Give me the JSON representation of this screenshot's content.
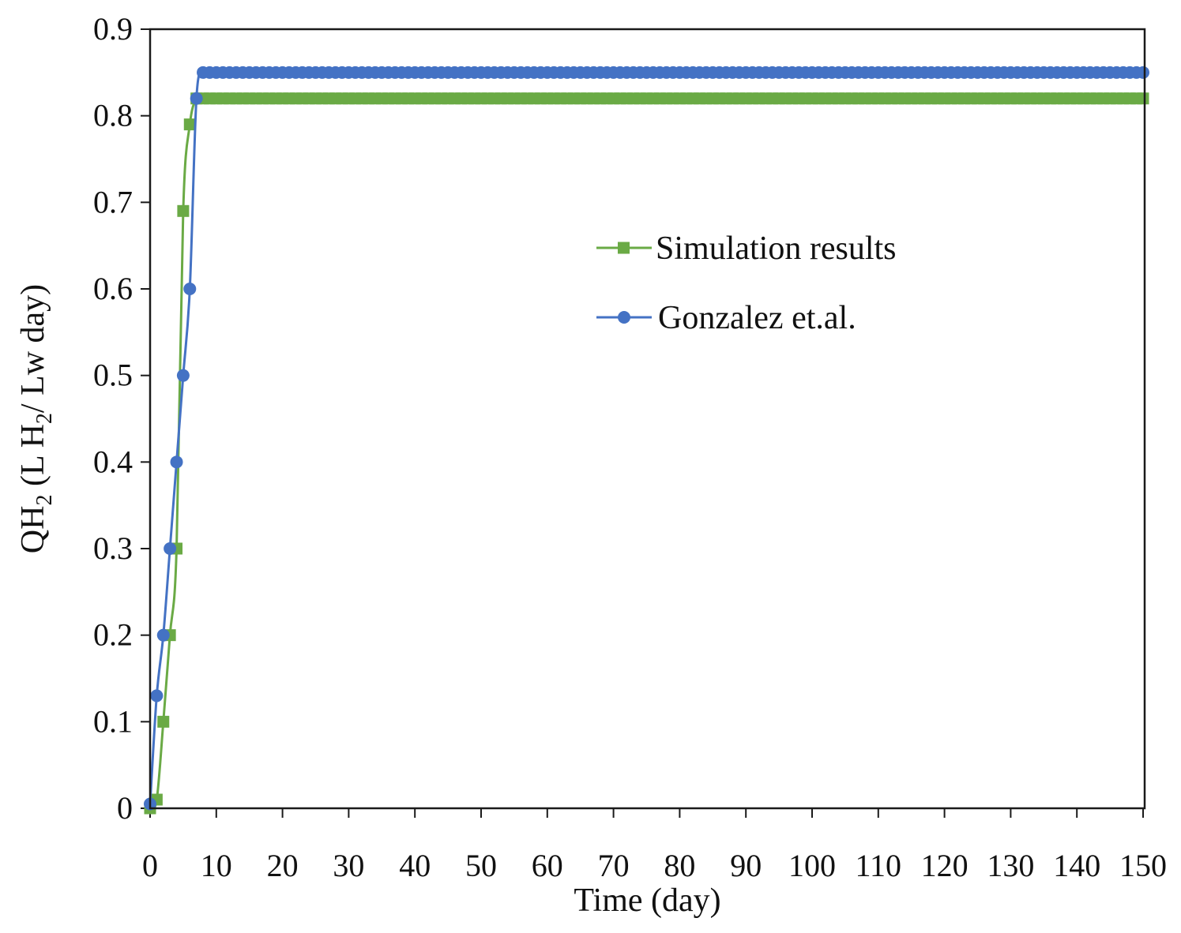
{
  "chart_data": {
    "type": "line",
    "title": "",
    "xlabel": "Time (day)",
    "ylabel": {
      "prefix": "QH",
      "prefix_sub": "2",
      "mid": " (L H",
      "mid_sub": "2",
      "suffix": "/ Lw day)"
    },
    "xlim": [
      0,
      150
    ],
    "ylim": [
      0,
      0.9
    ],
    "x_ticks": [
      0,
      10,
      20,
      30,
      40,
      50,
      60,
      70,
      80,
      90,
      100,
      110,
      120,
      130,
      140,
      150
    ],
    "x_tick_labels": [
      "0",
      "10",
      "20",
      "30",
      "40",
      "50",
      "60",
      "70",
      "80",
      "90",
      "100",
      "110",
      "120",
      "130",
      "140",
      "150"
    ],
    "y_ticks": [
      0,
      0.1,
      0.2,
      0.3,
      0.4,
      0.5,
      0.6,
      0.7,
      0.8,
      0.9
    ],
    "y_tick_labels": [
      "0",
      "0.1",
      "0.2",
      "0.3",
      "0.4",
      "0.5",
      "0.6",
      "0.7",
      "0.8",
      "0.9"
    ],
    "grid": false,
    "legend_position": "upper-right",
    "series": [
      {
        "name": "Simulation results",
        "marker": "square",
        "color": "#6aaa45",
        "x": [
          0,
          1,
          2,
          3,
          4,
          5,
          6,
          7,
          8,
          9,
          10,
          11,
          12,
          13,
          14,
          15,
          16,
          17,
          18,
          19,
          20,
          21,
          22,
          23,
          24,
          25,
          26,
          27,
          28,
          29,
          30,
          31,
          32,
          33,
          34,
          35,
          36,
          37,
          38,
          39,
          40,
          41,
          42,
          43,
          44,
          45,
          46,
          47,
          48,
          49,
          50,
          51,
          52,
          53,
          54,
          55,
          56,
          57,
          58,
          59,
          60,
          61,
          62,
          63,
          64,
          65,
          66,
          67,
          68,
          69,
          70,
          71,
          72,
          73,
          74,
          75,
          76,
          77,
          78,
          79,
          80,
          81,
          82,
          83,
          84,
          85,
          86,
          87,
          88,
          89,
          90,
          91,
          92,
          93,
          94,
          95,
          96,
          97,
          98,
          99,
          100,
          101,
          102,
          103,
          104,
          105,
          106,
          107,
          108,
          109,
          110,
          111,
          112,
          113,
          114,
          115,
          116,
          117,
          118,
          119,
          120,
          121,
          122,
          123,
          124,
          125,
          126,
          127,
          128,
          129,
          130,
          131,
          132,
          133,
          134,
          135,
          136,
          137,
          138,
          139,
          140,
          141,
          142,
          143,
          144,
          145,
          146,
          147,
          148,
          149,
          150
        ],
        "y": [
          0.0,
          0.01,
          0.1,
          0.2,
          0.3,
          0.69,
          0.79,
          0.82,
          0.82,
          0.82,
          0.82,
          0.82,
          0.82,
          0.82,
          0.82,
          0.82,
          0.82,
          0.82,
          0.82,
          0.82,
          0.82,
          0.82,
          0.82,
          0.82,
          0.82,
          0.82,
          0.82,
          0.82,
          0.82,
          0.82,
          0.82,
          0.82,
          0.82,
          0.82,
          0.82,
          0.82,
          0.82,
          0.82,
          0.82,
          0.82,
          0.82,
          0.82,
          0.82,
          0.82,
          0.82,
          0.82,
          0.82,
          0.82,
          0.82,
          0.82,
          0.82,
          0.82,
          0.82,
          0.82,
          0.82,
          0.82,
          0.82,
          0.82,
          0.82,
          0.82,
          0.82,
          0.82,
          0.82,
          0.82,
          0.82,
          0.82,
          0.82,
          0.82,
          0.82,
          0.82,
          0.82,
          0.82,
          0.82,
          0.82,
          0.82,
          0.82,
          0.82,
          0.82,
          0.82,
          0.82,
          0.82,
          0.82,
          0.82,
          0.82,
          0.82,
          0.82,
          0.82,
          0.82,
          0.82,
          0.82,
          0.82,
          0.82,
          0.82,
          0.82,
          0.82,
          0.82,
          0.82,
          0.82,
          0.82,
          0.82,
          0.82,
          0.82,
          0.82,
          0.82,
          0.82,
          0.82,
          0.82,
          0.82,
          0.82,
          0.82,
          0.82,
          0.82,
          0.82,
          0.82,
          0.82,
          0.82,
          0.82,
          0.82,
          0.82,
          0.82,
          0.82,
          0.82,
          0.82,
          0.82,
          0.82,
          0.82,
          0.82,
          0.82,
          0.82,
          0.82,
          0.82,
          0.82,
          0.82,
          0.82,
          0.82,
          0.82,
          0.82,
          0.82,
          0.82,
          0.82,
          0.82,
          0.82,
          0.82,
          0.82,
          0.82,
          0.82,
          0.82,
          0.82,
          0.82,
          0.82,
          0.82
        ]
      },
      {
        "name": "Gonzalez et.al.",
        "marker": "circle",
        "color": "#4472c4",
        "x": [
          0,
          1,
          2,
          3,
          4,
          5,
          6,
          7,
          8,
          9,
          10,
          11,
          12,
          13,
          14,
          15,
          16,
          17,
          18,
          19,
          20,
          21,
          22,
          23,
          24,
          25,
          26,
          27,
          28,
          29,
          30,
          31,
          32,
          33,
          34,
          35,
          36,
          37,
          38,
          39,
          40,
          41,
          42,
          43,
          44,
          45,
          46,
          47,
          48,
          49,
          50,
          51,
          52,
          53,
          54,
          55,
          56,
          57,
          58,
          59,
          60,
          61,
          62,
          63,
          64,
          65,
          66,
          67,
          68,
          69,
          70,
          71,
          72,
          73,
          74,
          75,
          76,
          77,
          78,
          79,
          80,
          81,
          82,
          83,
          84,
          85,
          86,
          87,
          88,
          89,
          90,
          91,
          92,
          93,
          94,
          95,
          96,
          97,
          98,
          99,
          100,
          101,
          102,
          103,
          104,
          105,
          106,
          107,
          108,
          109,
          110,
          111,
          112,
          113,
          114,
          115,
          116,
          117,
          118,
          119,
          120,
          121,
          122,
          123,
          124,
          125,
          126,
          127,
          128,
          129,
          130,
          131,
          132,
          133,
          134,
          135,
          136,
          137,
          138,
          139,
          140,
          141,
          142,
          143,
          144,
          145,
          146,
          147,
          148,
          149,
          150
        ],
        "y": [
          0.005,
          0.13,
          0.2,
          0.3,
          0.4,
          0.5,
          0.6,
          0.82,
          0.85,
          0.85,
          0.85,
          0.85,
          0.85,
          0.85,
          0.85,
          0.85,
          0.85,
          0.85,
          0.85,
          0.85,
          0.85,
          0.85,
          0.85,
          0.85,
          0.85,
          0.85,
          0.85,
          0.85,
          0.85,
          0.85,
          0.85,
          0.85,
          0.85,
          0.85,
          0.85,
          0.85,
          0.85,
          0.85,
          0.85,
          0.85,
          0.85,
          0.85,
          0.85,
          0.85,
          0.85,
          0.85,
          0.85,
          0.85,
          0.85,
          0.85,
          0.85,
          0.85,
          0.85,
          0.85,
          0.85,
          0.85,
          0.85,
          0.85,
          0.85,
          0.85,
          0.85,
          0.85,
          0.85,
          0.85,
          0.85,
          0.85,
          0.85,
          0.85,
          0.85,
          0.85,
          0.85,
          0.85,
          0.85,
          0.85,
          0.85,
          0.85,
          0.85,
          0.85,
          0.85,
          0.85,
          0.85,
          0.85,
          0.85,
          0.85,
          0.85,
          0.85,
          0.85,
          0.85,
          0.85,
          0.85,
          0.85,
          0.85,
          0.85,
          0.85,
          0.85,
          0.85,
          0.85,
          0.85,
          0.85,
          0.85,
          0.85,
          0.85,
          0.85,
          0.85,
          0.85,
          0.85,
          0.85,
          0.85,
          0.85,
          0.85,
          0.85,
          0.85,
          0.85,
          0.85,
          0.85,
          0.85,
          0.85,
          0.85,
          0.85,
          0.85,
          0.85,
          0.85,
          0.85,
          0.85,
          0.85,
          0.85,
          0.85,
          0.85,
          0.85,
          0.85,
          0.85,
          0.85,
          0.85,
          0.85,
          0.85,
          0.85,
          0.85,
          0.85,
          0.85,
          0.85,
          0.85,
          0.85,
          0.85,
          0.85,
          0.85,
          0.85,
          0.85,
          0.85,
          0.85,
          0.85,
          0.85
        ]
      }
    ]
  }
}
